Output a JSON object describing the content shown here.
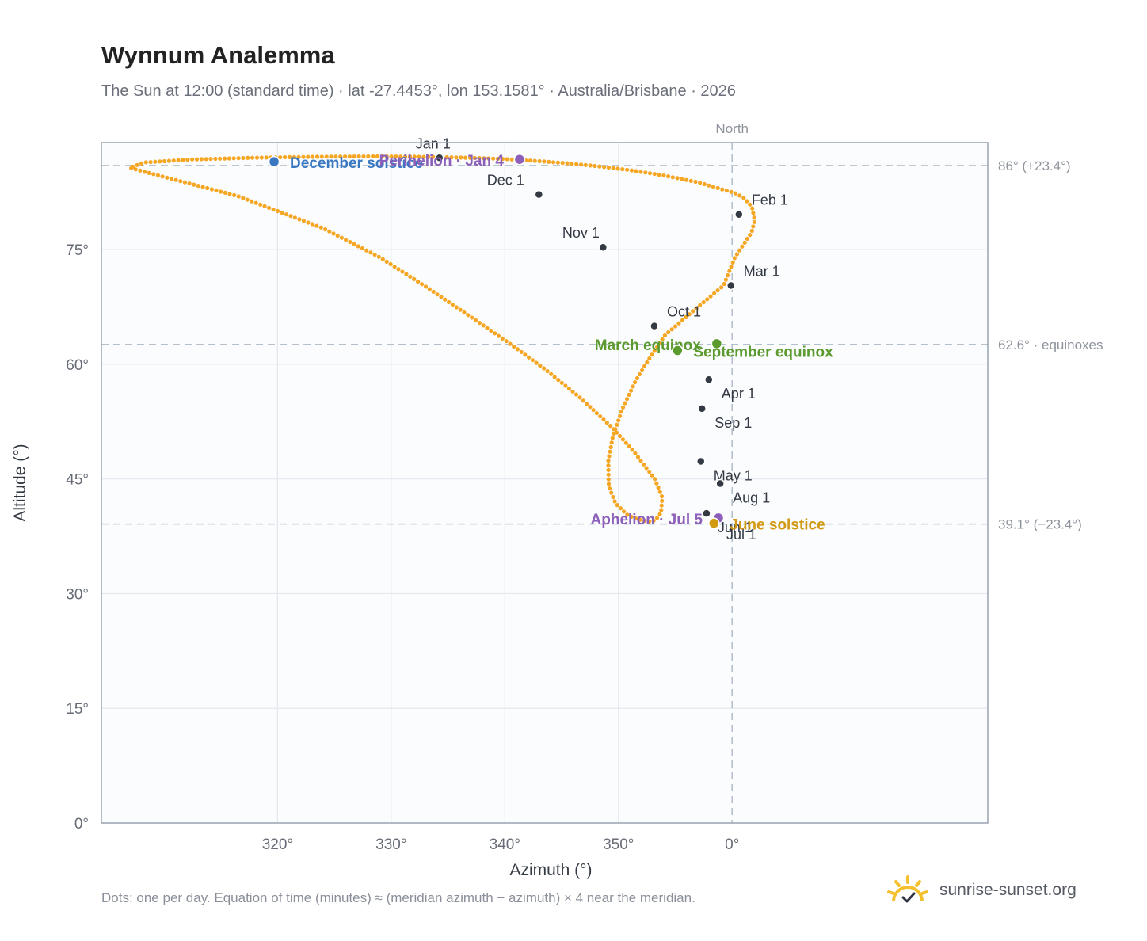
{
  "header": {
    "title": "Wynnum Analemma",
    "subtitle": "The Sun at 12:00 (standard time) · lat -27.4453°, lon 153.1581° · Australia/Brisbane · 2026"
  },
  "footer": {
    "footnote": "Dots: one per day. Equation of time (minutes) ≈ (meridian azimuth − azimuth) × 4 near the meridian.",
    "brand": "sunrise-sunset.org"
  },
  "colors": {
    "path": "#f5a623",
    "month_marker": "#333a44",
    "december_solstice": "#3a78c2",
    "june_solstice": "#d19a12",
    "equinox": "#5a9a2e",
    "apsis": "#8c5fb8",
    "reference_line": "#b4c0cc",
    "plot_background": "#fbfcfe",
    "grid": "#e4e8ee"
  },
  "chart_data": {
    "type": "scatter",
    "xlabel": "Azimuth (°)",
    "ylabel": "Altitude (°)",
    "xlim": [
      -11.1,
      4.5
    ],
    "ylim": [
      0,
      89
    ],
    "x_ticks": [
      {
        "value": -8,
        "label": "320°"
      },
      {
        "value": -6,
        "label": "330°"
      },
      {
        "value": -4,
        "label": "340°"
      },
      {
        "value": -2,
        "label": "350°"
      },
      {
        "value": 0,
        "label": "0°"
      }
    ],
    "y_ticks": [
      {
        "value": 0,
        "label": "0°"
      },
      {
        "value": 15,
        "label": "15°"
      },
      {
        "value": 30,
        "label": "30°"
      },
      {
        "value": 45,
        "label": "45°"
      },
      {
        "value": 60,
        "label": "60°"
      },
      {
        "value": 75,
        "label": "75°"
      }
    ],
    "grid": true,
    "north_line": {
      "x": 0,
      "label": "North"
    },
    "reference_lines": [
      {
        "y": 86.0,
        "label": "86° (+23.4°)"
      },
      {
        "y": 62.6,
        "label": "62.6° · equinoxes"
      },
      {
        "y": 39.1,
        "label": "39.1° (−23.4°)"
      }
    ],
    "daily_path": [
      [
        -5.1,
        87.1
      ],
      [
        -4.55,
        87.0
      ],
      [
        -4.0,
        86.85
      ],
      [
        -3.45,
        86.6
      ],
      [
        -2.9,
        86.3
      ],
      [
        -2.35,
        85.9
      ],
      [
        -1.8,
        85.4
      ],
      [
        -1.2,
        84.7
      ],
      [
        -0.6,
        83.8
      ],
      [
        0.05,
        82.4
      ],
      [
        0.2,
        81.8
      ],
      [
        0.35,
        80.6
      ],
      [
        0.4,
        78.8
      ],
      [
        0.34,
        77.2
      ],
      [
        0.05,
        74.0
      ],
      [
        -0.15,
        70.3
      ],
      [
        -0.65,
        67.2
      ],
      [
        -1.18,
        63.8
      ],
      [
        -1.47,
        60.6
      ],
      [
        -1.7,
        57.8
      ],
      [
        -1.93,
        54.2
      ],
      [
        -2.1,
        50.5
      ],
      [
        -2.18,
        47.3
      ],
      [
        -2.17,
        44.0
      ],
      [
        -2.05,
        41.8
      ],
      [
        -1.83,
        40.2
      ],
      [
        -1.6,
        39.6
      ],
      [
        -1.44,
        39.4
      ],
      [
        -1.35,
        39.6
      ],
      [
        -1.25,
        40.6
      ],
      [
        -1.23,
        42.6
      ],
      [
        -1.36,
        45.0
      ],
      [
        -1.72,
        48.5
      ],
      [
        -2.12,
        51.8
      ],
      [
        -2.7,
        55.8
      ],
      [
        -3.3,
        59.4
      ],
      [
        -3.93,
        62.8
      ],
      [
        -4.58,
        66.1
      ],
      [
        -5.4,
        70.2
      ],
      [
        -6.2,
        74.0
      ],
      [
        -7.2,
        77.8
      ],
      [
        -8.7,
        82.0
      ],
      [
        -10.3,
        85.1
      ],
      [
        -10.6,
        85.7
      ],
      [
        -10.35,
        86.4
      ],
      [
        -9.5,
        86.8
      ],
      [
        -8.5,
        87.0
      ],
      [
        -7.3,
        87.15
      ],
      [
        -6.2,
        87.2
      ],
      [
        -5.1,
        87.1
      ]
    ],
    "month_markers": [
      {
        "label": "Jan 1",
        "x": -5.15,
        "y": 87.0
      },
      {
        "label": "Feb 1",
        "x": 0.12,
        "y": 79.6
      },
      {
        "label": "Mar 1",
        "x": -0.02,
        "y": 70.3
      },
      {
        "label": "Apr 1",
        "x": -0.41,
        "y": 58.0
      },
      {
        "label": "May 1",
        "x": -0.55,
        "y": 47.3
      },
      {
        "label": "Jun 1",
        "x": -0.45,
        "y": 40.5
      },
      {
        "label": "Jul 1",
        "x": -0.24,
        "y": 39.8
      },
      {
        "label": "Aug 1",
        "x": -0.21,
        "y": 44.4
      },
      {
        "label": "Sep 1",
        "x": -0.53,
        "y": 54.2
      },
      {
        "label": "Oct 1",
        "x": -1.37,
        "y": 65.0
      },
      {
        "label": "Nov 1",
        "x": -2.27,
        "y": 75.3
      },
      {
        "label": "Dec 1",
        "x": -3.4,
        "y": 82.2
      }
    ],
    "special_points": [
      {
        "label": "December solstice",
        "x": -8.06,
        "y": 86.5,
        "kind": "december_solstice",
        "anchor": "start"
      },
      {
        "label": "Perihelion · Jan 4",
        "x": -3.74,
        "y": 86.8,
        "kind": "apsis",
        "anchor": "end"
      },
      {
        "label": "March equinox",
        "x": -0.27,
        "y": 62.7,
        "kind": "equinox",
        "anchor": "end"
      },
      {
        "label": "September equinox",
        "x": -0.96,
        "y": 61.8,
        "kind": "equinox",
        "anchor": "start"
      },
      {
        "label": "Aphelion · Jul 5",
        "x": -0.24,
        "y": 39.9,
        "kind": "apsis",
        "anchor": "end"
      },
      {
        "label": "June solstice",
        "x": -0.32,
        "y": 39.2,
        "kind": "june_solstice",
        "anchor": "start"
      }
    ]
  }
}
